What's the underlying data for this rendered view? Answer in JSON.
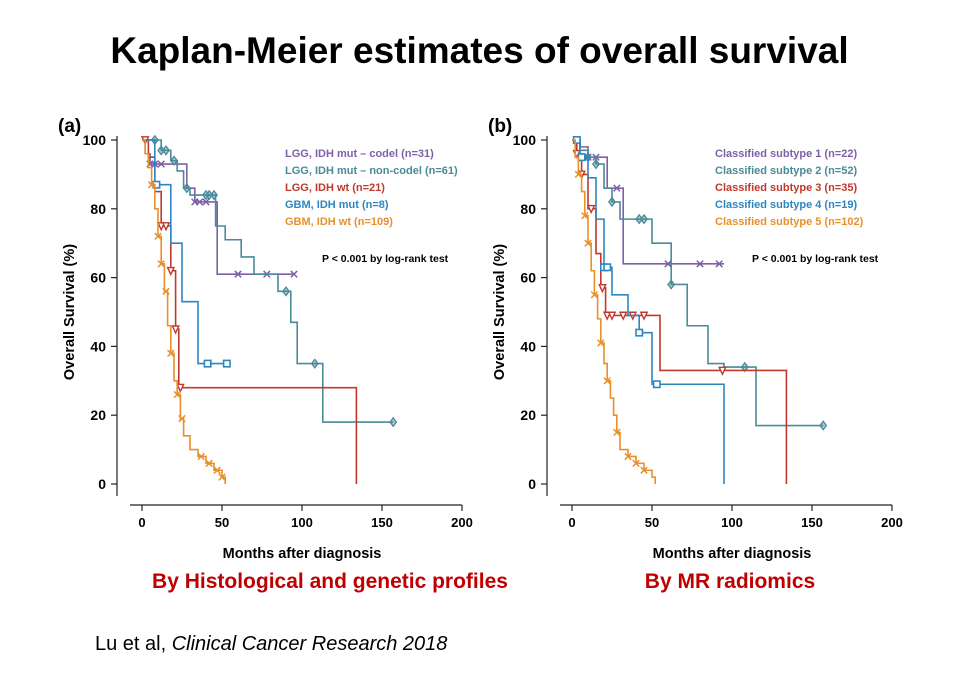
{
  "title": "Kaplan-Meier estimates of overall survival",
  "captions": [
    "By Histological and genetic profiles",
    "By MR radiomics"
  ],
  "citation": {
    "authors": "Lu et al, ",
    "journal": "Clinical Cancer Research 2018"
  },
  "chart_data": [
    {
      "type": "line",
      "panel_label": "(a)",
      "title": "",
      "xlabel": "Months after diagnosis",
      "ylabel": "Overall Survival (%)",
      "xlim": [
        0,
        200
      ],
      "ylim": [
        0,
        100
      ],
      "xticks": [
        0,
        50,
        100,
        150,
        200
      ],
      "yticks": [
        0,
        20,
        40,
        60,
        80,
        100
      ],
      "grid": false,
      "legend_position": "top-right",
      "annotation": "P < 0.001 by log-rank test",
      "series": [
        {
          "name": "LGG, IDH mut – codel (n=31)",
          "color": "#7f5fa8",
          "marker": "x",
          "x": [
            0,
            2,
            5,
            8,
            12,
            15,
            22,
            28,
            33,
            38,
            43,
            47,
            60,
            95
          ],
          "y": [
            100,
            96,
            93,
            93,
            93,
            93,
            93,
            86,
            82,
            82,
            82,
            61,
            61,
            61
          ],
          "censored_x": [
            5,
            8,
            12,
            33,
            36,
            40,
            60,
            78,
            95
          ]
        },
        {
          "name": "LGG, IDH mut – non-codel (n=61)",
          "color": "#4a8a99",
          "marker": "diamond",
          "x": [
            0,
            6,
            12,
            18,
            22,
            26,
            30,
            36,
            46,
            52,
            62,
            70,
            85,
            93,
            97,
            113,
            157
          ],
          "y": [
            100,
            100,
            97,
            94,
            91,
            86,
            84,
            84,
            75,
            71,
            66,
            61,
            56,
            47,
            35,
            18,
            18
          ],
          "censored_x": [
            8,
            12,
            15,
            20,
            28,
            40,
            42,
            45,
            90,
            108,
            157
          ]
        },
        {
          "name": "LGG, IDH wt (n=21)",
          "color": "#c0392b",
          "marker": "triangle-down",
          "x": [
            0,
            4,
            8,
            12,
            18,
            21,
            23,
            134,
            134
          ],
          "y": [
            100,
            95,
            85,
            75,
            62,
            45,
            28,
            28,
            0
          ],
          "censored_x": [
            2,
            12,
            15,
            18,
            21,
            24
          ]
        },
        {
          "name": "GBM, IDH mut  (n=8)",
          "color": "#2e86c1",
          "marker": "square",
          "x": [
            0,
            8,
            18,
            25,
            35,
            53
          ],
          "y": [
            100,
            87,
            70,
            53,
            35,
            35
          ],
          "censored_x": [
            9,
            41,
            53
          ]
        },
        {
          "name": "GBM, IDH wt (n=109)",
          "color": "#e8902a",
          "marker": "x",
          "x": [
            0,
            2,
            4,
            6,
            8,
            10,
            12,
            14,
            16,
            18,
            20,
            22,
            24,
            26,
            30,
            35,
            40,
            45,
            50,
            52
          ],
          "y": [
            100,
            96,
            92,
            87,
            80,
            72,
            64,
            56,
            46,
            38,
            30,
            26,
            19,
            14,
            10,
            8,
            6,
            4,
            2,
            0
          ],
          "censored_x": [
            6,
            10,
            12,
            15,
            18,
            22,
            25,
            37,
            42,
            47,
            50
          ]
        }
      ]
    },
    {
      "type": "line",
      "panel_label": "(b)",
      "title": "",
      "xlabel": "Months after diagnosis",
      "ylabel": "Overall Survival (%)",
      "xlim": [
        0,
        200
      ],
      "ylim": [
        0,
        100
      ],
      "xticks": [
        0,
        50,
        100,
        150,
        200
      ],
      "yticks": [
        0,
        20,
        40,
        60,
        80,
        100
      ],
      "grid": false,
      "legend_position": "top-right",
      "annotation": "P < 0.001 by log-rank test",
      "series": [
        {
          "name": "Classified subtype 1 (n=22)",
          "color": "#7f5fa8",
          "marker": "x",
          "x": [
            0,
            5,
            10,
            15,
            22,
            28,
            32,
            95
          ],
          "y": [
            100,
            98,
            95,
            95,
            86,
            86,
            64,
            64
          ],
          "censored_x": [
            10,
            15,
            28,
            60,
            80,
            92
          ]
        },
        {
          "name": "Classified subtype 2 (n=52)",
          "color": "#4a8a99",
          "marker": "diamond",
          "x": [
            0,
            5,
            10,
            15,
            20,
            25,
            30,
            45,
            50,
            62,
            72,
            85,
            95,
            115,
            157
          ],
          "y": [
            100,
            97,
            95,
            93,
            86,
            82,
            77,
            77,
            70,
            58,
            46,
            35,
            34,
            17,
            17
          ],
          "censored_x": [
            10,
            15,
            25,
            42,
            45,
            62,
            108,
            157
          ]
        },
        {
          "name": "Classified subtype 3 (n=35)",
          "color": "#c0392b",
          "marker": "triangle-down",
          "x": [
            0,
            3,
            6,
            10,
            15,
            18,
            21,
            50,
            55,
            95,
            134,
            134
          ],
          "y": [
            100,
            96,
            90,
            80,
            67,
            57,
            49,
            49,
            33,
            33,
            33,
            0
          ],
          "censored_x": [
            3,
            6,
            12,
            19,
            22,
            25,
            32,
            38,
            45,
            94
          ]
        },
        {
          "name": "Classified subtype 4 (n=19)",
          "color": "#2e86c1",
          "marker": "square",
          "x": [
            0,
            5,
            10,
            15,
            20,
            25,
            35,
            42,
            50,
            95,
            95
          ],
          "y": [
            100,
            95,
            89,
            77,
            63,
            55,
            49,
            44,
            29,
            29,
            0
          ],
          "censored_x": [
            3,
            6,
            20,
            22,
            42,
            53
          ]
        },
        {
          "name": "Classified subtype 5 (n=102)",
          "color": "#e8902a",
          "marker": "x",
          "x": [
            0,
            2,
            4,
            6,
            8,
            10,
            12,
            14,
            16,
            18,
            20,
            22,
            24,
            26,
            28,
            30,
            35,
            40,
            45,
            50,
            52
          ],
          "y": [
            100,
            95,
            90,
            85,
            78,
            70,
            62,
            55,
            48,
            41,
            35,
            30,
            25,
            20,
            15,
            10,
            8,
            6,
            4,
            2,
            0
          ],
          "censored_x": [
            4,
            8,
            10,
            14,
            18,
            22,
            28,
            35,
            40,
            45
          ]
        }
      ]
    }
  ]
}
